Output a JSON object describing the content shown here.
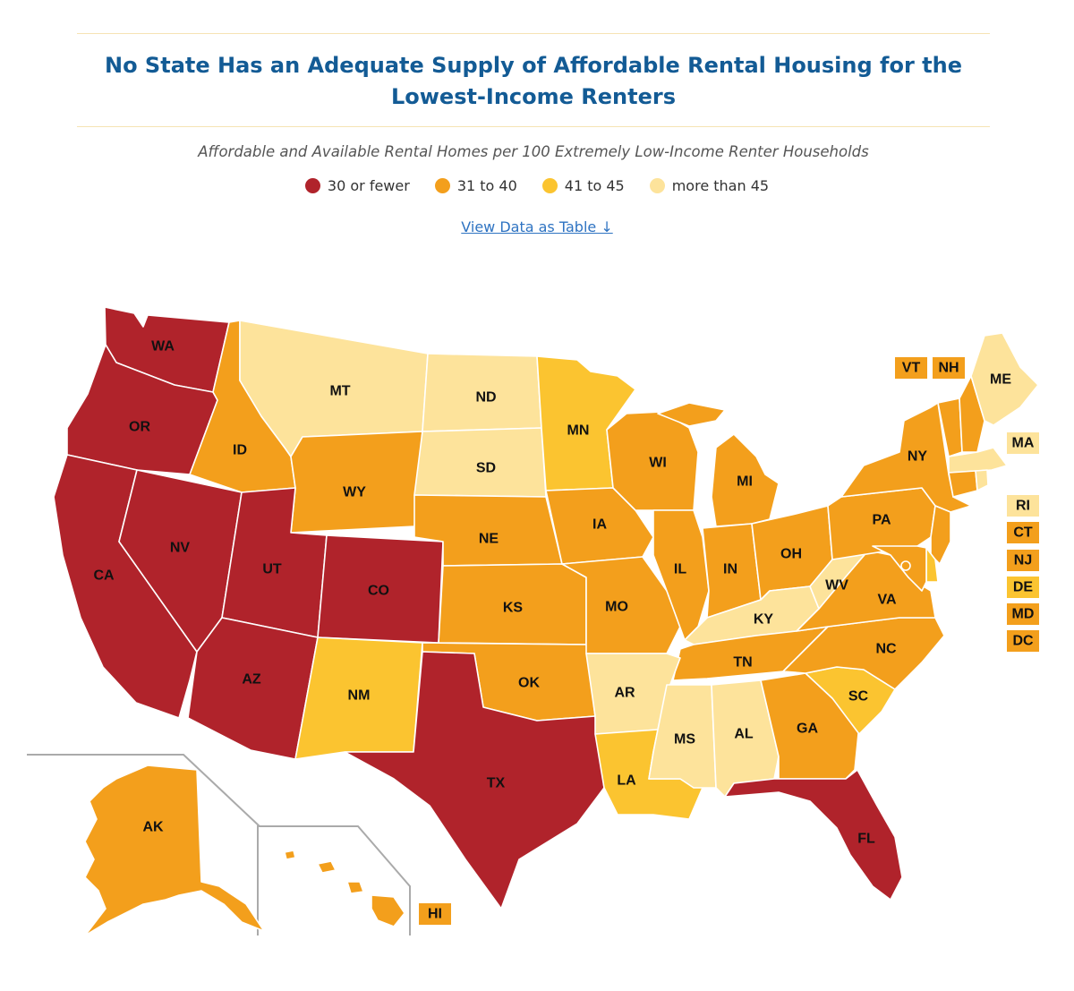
{
  "title": "No State Has an Adequate Supply of Affordable Rental Housing for the Lowest-Income Renters",
  "subtitle": "Affordable and Available Rental Homes per 100 Extremely Low-Income Renter Households",
  "legend": [
    {
      "label": "30 or fewer",
      "color": "#b0232b"
    },
    {
      "label": "31 to 40",
      "color": "#f39f1c"
    },
    {
      "label": "41 to 45",
      "color": "#fbc430"
    },
    {
      "label": "more than 45",
      "color": "#fde39b"
    }
  ],
  "table_link": "View Data as Table ↓",
  "colors": {
    "low": "#b0232b",
    "mid": "#f39f1c",
    "high": "#fbc430",
    "top": "#fde39b",
    "inset_border": "#aaaaaa"
  },
  "map": {
    "states": [
      {
        "abbr": "WA",
        "category": "30 or fewer"
      },
      {
        "abbr": "OR",
        "category": "30 or fewer"
      },
      {
        "abbr": "CA",
        "category": "30 or fewer"
      },
      {
        "abbr": "NV",
        "category": "30 or fewer"
      },
      {
        "abbr": "UT",
        "category": "30 or fewer"
      },
      {
        "abbr": "AZ",
        "category": "30 or fewer"
      },
      {
        "abbr": "CO",
        "category": "30 or fewer"
      },
      {
        "abbr": "TX",
        "category": "30 or fewer"
      },
      {
        "abbr": "FL",
        "category": "30 or fewer"
      },
      {
        "abbr": "ID",
        "category": "31 to 40"
      },
      {
        "abbr": "WY",
        "category": "31 to 40"
      },
      {
        "abbr": "NE",
        "category": "31 to 40"
      },
      {
        "abbr": "KS",
        "category": "31 to 40"
      },
      {
        "abbr": "OK",
        "category": "31 to 40"
      },
      {
        "abbr": "IA",
        "category": "31 to 40"
      },
      {
        "abbr": "MO",
        "category": "31 to 40"
      },
      {
        "abbr": "WI",
        "category": "31 to 40"
      },
      {
        "abbr": "IL",
        "category": "31 to 40"
      },
      {
        "abbr": "IN",
        "category": "31 to 40"
      },
      {
        "abbr": "MI",
        "category": "31 to 40"
      },
      {
        "abbr": "OH",
        "category": "31 to 40"
      },
      {
        "abbr": "PA",
        "category": "31 to 40"
      },
      {
        "abbr": "NY",
        "category": "31 to 40"
      },
      {
        "abbr": "VA",
        "category": "31 to 40"
      },
      {
        "abbr": "NC",
        "category": "31 to 40"
      },
      {
        "abbr": "TN",
        "category": "31 to 40"
      },
      {
        "abbr": "GA",
        "category": "31 to 40"
      },
      {
        "abbr": "AK",
        "category": "31 to 40"
      },
      {
        "abbr": "HI",
        "category": "31 to 40"
      },
      {
        "abbr": "VT",
        "category": "31 to 40"
      },
      {
        "abbr": "NH",
        "category": "31 to 40"
      },
      {
        "abbr": "CT",
        "category": "31 to 40"
      },
      {
        "abbr": "NJ",
        "category": "31 to 40"
      },
      {
        "abbr": "MD",
        "category": "31 to 40"
      },
      {
        "abbr": "DC",
        "category": "31 to 40"
      },
      {
        "abbr": "MN",
        "category": "41 to 45"
      },
      {
        "abbr": "NM",
        "category": "41 to 45"
      },
      {
        "abbr": "LA",
        "category": "41 to 45"
      },
      {
        "abbr": "SC",
        "category": "41 to 45"
      },
      {
        "abbr": "DE",
        "category": "41 to 45"
      },
      {
        "abbr": "MT",
        "category": "more than 45"
      },
      {
        "abbr": "ND",
        "category": "more than 45"
      },
      {
        "abbr": "SD",
        "category": "more than 45"
      },
      {
        "abbr": "AR",
        "category": "more than 45"
      },
      {
        "abbr": "MS",
        "category": "more than 45"
      },
      {
        "abbr": "AL",
        "category": "more than 45"
      },
      {
        "abbr": "KY",
        "category": "more than 45"
      },
      {
        "abbr": "WV",
        "category": "more than 45"
      },
      {
        "abbr": "ME",
        "category": "more than 45"
      },
      {
        "abbr": "MA",
        "category": "more than 45"
      },
      {
        "abbr": "RI",
        "category": "more than 45"
      }
    ]
  }
}
